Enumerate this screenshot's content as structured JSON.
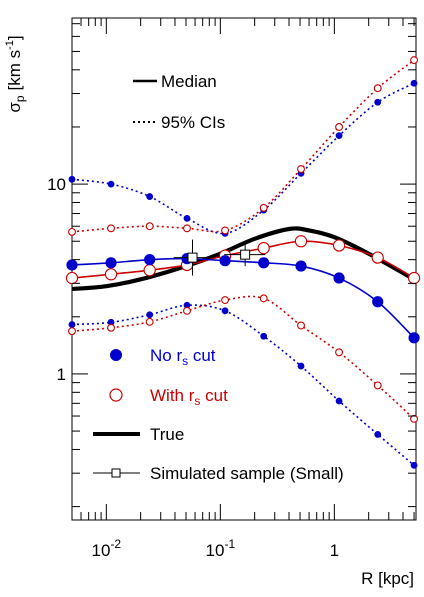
{
  "chart_data": {
    "type": "line",
    "xlabel": "R [kpc]",
    "ylabel_main": "σ",
    "ylabel_sub": "p",
    "ylabel_unit": "[km s",
    "ylabel_unit_sup": "-1",
    "ylabel_close": "]",
    "x_scale": "log",
    "y_scale": "log",
    "xlim": [
      0.005,
      5.2
    ],
    "ylim": [
      0.17,
      75
    ],
    "x_ticks": [
      {
        "value": 0.01,
        "base": "10",
        "exp": "-2"
      },
      {
        "value": 0.1,
        "base": "10",
        "exp": "-1"
      },
      {
        "value": 1,
        "base": "1",
        "exp": ""
      }
    ],
    "y_ticks": [
      {
        "value": 1,
        "label": "1"
      },
      {
        "value": 10,
        "label": "10"
      }
    ],
    "colors": {
      "blue": "#0000cc",
      "red": "#cc0000",
      "black": "#000000"
    },
    "legend_top": {
      "placement": "top-left",
      "median_label": "Median",
      "ci_label": "95% CIs"
    },
    "legend_bottom": {
      "placement": "bottom-left",
      "no_cut_prefix": "No r",
      "no_cut_sub": "s",
      "no_cut_suffix": " cut",
      "with_cut_prefix": "With r",
      "with_cut_sub": "s",
      "with_cut_suffix": " cut",
      "true_label": "True",
      "sim_label": "Simulated sample (Small)"
    },
    "series": [
      {
        "key": "blue_median",
        "color": "blue",
        "style": "solid",
        "marker": "filled-large",
        "points": [
          [
            0.005,
            3.75
          ],
          [
            0.011,
            3.85
          ],
          [
            0.024,
            4.0
          ],
          [
            0.051,
            4.05
          ],
          [
            0.11,
            3.95
          ],
          [
            0.24,
            3.85
          ],
          [
            0.51,
            3.7
          ],
          [
            1.1,
            3.2
          ],
          [
            2.4,
            2.4
          ],
          [
            5.0,
            1.55
          ]
        ]
      },
      {
        "key": "blue_upper",
        "color": "blue",
        "style": "dotted",
        "marker": "filled-small",
        "points": [
          [
            0.005,
            10.6
          ],
          [
            0.011,
            10.0
          ],
          [
            0.024,
            8.6
          ],
          [
            0.051,
            6.6
          ],
          [
            0.11,
            5.5
          ],
          [
            0.24,
            7.3
          ],
          [
            0.51,
            11.4
          ],
          [
            1.1,
            18.0
          ],
          [
            2.4,
            27.0
          ],
          [
            5.0,
            34.0
          ]
        ]
      },
      {
        "key": "blue_lower",
        "color": "blue",
        "style": "dotted",
        "marker": "filled-small",
        "points": [
          [
            0.005,
            1.82
          ],
          [
            0.011,
            1.87
          ],
          [
            0.024,
            2.05
          ],
          [
            0.051,
            2.3
          ],
          [
            0.11,
            2.15
          ],
          [
            0.24,
            1.58
          ],
          [
            0.51,
            1.1
          ],
          [
            1.1,
            0.72
          ],
          [
            2.4,
            0.48
          ],
          [
            5.0,
            0.33
          ]
        ]
      },
      {
        "key": "red_median",
        "color": "red",
        "style": "solid",
        "marker": "open-large",
        "points": [
          [
            0.005,
            3.2
          ],
          [
            0.011,
            3.35
          ],
          [
            0.024,
            3.52
          ],
          [
            0.051,
            3.75
          ],
          [
            0.11,
            4.2
          ],
          [
            0.24,
            4.6
          ],
          [
            0.51,
            5.0
          ],
          [
            1.1,
            4.75
          ],
          [
            2.4,
            4.1
          ],
          [
            5.0,
            3.2
          ]
        ]
      },
      {
        "key": "red_upper",
        "color": "red",
        "style": "dotted",
        "marker": "open-small",
        "points": [
          [
            0.005,
            5.6
          ],
          [
            0.011,
            5.85
          ],
          [
            0.024,
            6.0
          ],
          [
            0.051,
            5.85
          ],
          [
            0.11,
            5.7
          ],
          [
            0.24,
            7.5
          ],
          [
            0.51,
            12.0
          ],
          [
            1.1,
            20.0
          ],
          [
            2.4,
            32.0
          ],
          [
            5.0,
            45.0
          ]
        ]
      },
      {
        "key": "red_lower",
        "color": "red",
        "style": "dotted",
        "marker": "open-small",
        "points": [
          [
            0.005,
            1.68
          ],
          [
            0.011,
            1.75
          ],
          [
            0.024,
            1.88
          ],
          [
            0.051,
            2.15
          ],
          [
            0.11,
            2.45
          ],
          [
            0.24,
            2.5
          ],
          [
            0.51,
            1.8
          ],
          [
            1.1,
            1.3
          ],
          [
            2.4,
            0.87
          ],
          [
            5.0,
            0.58
          ]
        ]
      },
      {
        "key": "true",
        "color": "black",
        "style": "thick",
        "marker": "none",
        "points": [
          [
            0.005,
            2.8
          ],
          [
            0.01,
            2.9
          ],
          [
            0.02,
            3.15
          ],
          [
            0.05,
            3.7
          ],
          [
            0.1,
            4.3
          ],
          [
            0.2,
            5.15
          ],
          [
            0.4,
            5.8
          ],
          [
            0.6,
            5.7
          ],
          [
            1.0,
            5.25
          ],
          [
            2.0,
            4.3
          ],
          [
            5.0,
            3.15
          ]
        ]
      }
    ],
    "simulated_points": [
      {
        "x": 0.057,
        "y": 4.1,
        "xerr": [
          0.039,
          0.083
        ],
        "yerr": [
          3.3,
          5.1
        ]
      },
      {
        "x": 0.165,
        "y": 4.25,
        "xerr": [
          0.108,
          0.248
        ],
        "yerr": [
          3.7,
          4.8
        ]
      }
    ]
  }
}
